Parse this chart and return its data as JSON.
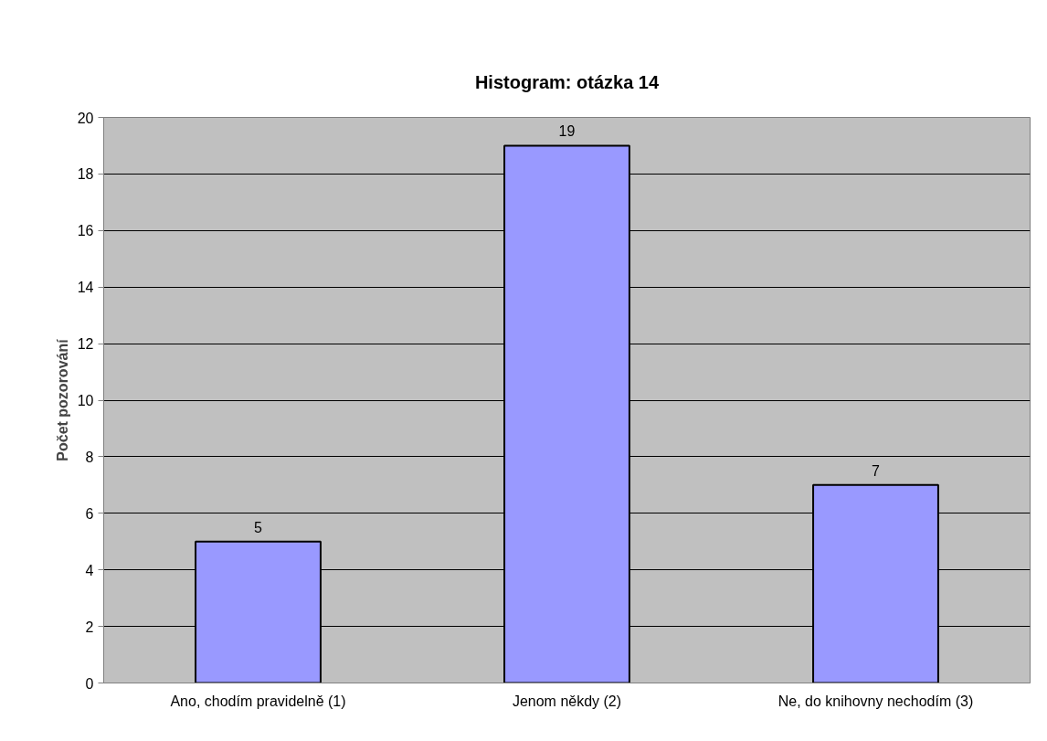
{
  "chart_data": {
    "type": "bar",
    "title": "Histogram: otázka 14",
    "ylabel": "Počet pozorování",
    "categories": [
      "Ano, chodím pravidelně (1)",
      "Jenom někdy (2)",
      "Ne, do knihovny nechodím (3)"
    ],
    "values": [
      5,
      19,
      7
    ],
    "color": "#9999ff",
    "data_labels": true,
    "ylim": [
      0,
      20
    ],
    "yticks": [
      0,
      2,
      4,
      6,
      8,
      10,
      12,
      14,
      16,
      18,
      20
    ],
    "grid": "y"
  }
}
